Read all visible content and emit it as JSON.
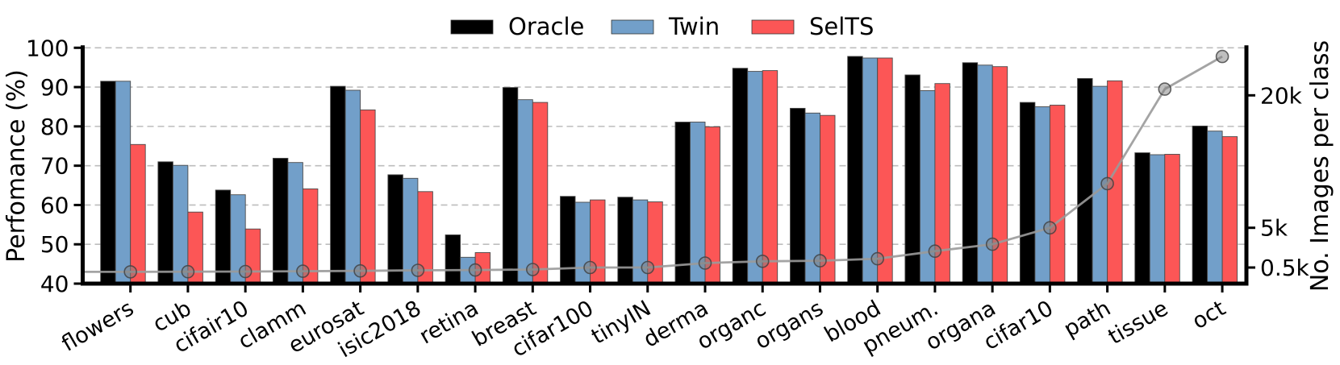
{
  "figure": {
    "kind": "grouped-bar-chart-with-secondary-line",
    "background": "#ffffff"
  },
  "chart_data": {
    "type": "bar",
    "title": "",
    "categories": [
      "flowers",
      "cub",
      "cifair10",
      "clamm",
      "eurosat",
      "isic2018",
      "retina",
      "breast",
      "cifar100",
      "tinyIN",
      "derma",
      "organc",
      "organs",
      "blood",
      "pneum.",
      "organa",
      "cifar10",
      "path",
      "tissue",
      "oct"
    ],
    "series": [
      {
        "name": "Oracle",
        "color": "#000000",
        "axis": "left",
        "values": [
          91.5,
          71.0,
          63.8,
          71.9,
          90.2,
          67.7,
          52.4,
          89.9,
          62.2,
          62.0,
          81.1,
          94.8,
          84.6,
          97.8,
          93.1,
          96.2,
          86.1,
          92.2,
          73.3,
          80.1
        ]
      },
      {
        "name": "Twin",
        "color": "#729FC9",
        "axis": "left",
        "values": [
          91.5,
          70.1,
          62.6,
          70.8,
          89.2,
          66.8,
          46.7,
          86.8,
          60.7,
          61.3,
          81.1,
          94.0,
          83.4,
          97.4,
          89.1,
          95.6,
          85.0,
          90.2,
          72.8,
          78.8
        ]
      },
      {
        "name": "SelTS",
        "color": "#FC5656",
        "axis": "left",
        "values": [
          75.4,
          58.2,
          53.9,
          64.1,
          84.2,
          63.4,
          47.9,
          86.1,
          61.3,
          60.8,
          79.9,
          94.2,
          82.8,
          97.4,
          90.9,
          95.2,
          85.4,
          91.6,
          72.9,
          77.4
        ]
      }
    ],
    "line_series": {
      "name": "No. Images per class",
      "type": "line",
      "color": "#9A9A9A",
      "marker": "circle",
      "marker_fill": "#808080",
      "marker_edge": "#3F3F3F",
      "axis": "right",
      "values": [
        10,
        30,
        50,
        80,
        120,
        180,
        220,
        270,
        500,
        500,
        1000,
        1200,
        1270,
        1500,
        2350,
        3140,
        5000,
        10000,
        20700,
        24400
      ]
    },
    "left_axis": {
      "label": "Perfomance (%)",
      "ticks": [
        40,
        50,
        60,
        70,
        80,
        90,
        100
      ],
      "range": [
        40,
        100
      ]
    },
    "right_axis": {
      "label": "No. Images per class",
      "ticks": [
        {
          "label": "0.5k",
          "value": 500
        },
        {
          "label": "5k",
          "value": 5000
        },
        {
          "label": "20k",
          "value": 20000
        }
      ]
    },
    "grid": {
      "horizontal_dashed": true,
      "color": "#BDBDBD"
    },
    "legend": {
      "position": "top-center",
      "entries": [
        "Oracle",
        "Twin",
        "SelTS"
      ]
    }
  }
}
